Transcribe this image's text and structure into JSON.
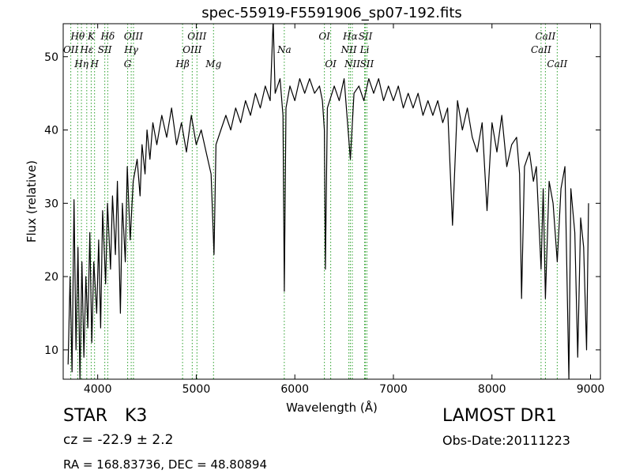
{
  "chart_data": {
    "type": "line",
    "title": "spec-55919-F5591906_sp07-192.fits",
    "xlabel": "Wavelength (Å)",
    "ylabel": "Flux (relative)",
    "xlim": [
      3650,
      9100
    ],
    "ylim": [
      6,
      54.5
    ],
    "xticks": [
      4000,
      5000,
      6000,
      7000,
      8000,
      9000
    ],
    "yticks": [
      10,
      20,
      30,
      40,
      50
    ],
    "grid": false,
    "series": [
      {
        "color": "#000000",
        "points": [
          [
            3700,
            8
          ],
          [
            3720,
            20
          ],
          [
            3740,
            7
          ],
          [
            3760,
            30.5
          ],
          [
            3780,
            10
          ],
          [
            3800,
            24
          ],
          [
            3820,
            6
          ],
          [
            3840,
            22
          ],
          [
            3860,
            9
          ],
          [
            3880,
            20
          ],
          [
            3900,
            13
          ],
          [
            3920,
            26
          ],
          [
            3940,
            11
          ],
          [
            3960,
            22
          ],
          [
            3990,
            15
          ],
          [
            4010,
            25
          ],
          [
            4030,
            13
          ],
          [
            4050,
            29
          ],
          [
            4080,
            19
          ],
          [
            4100,
            30
          ],
          [
            4130,
            21
          ],
          [
            4150,
            31
          ],
          [
            4180,
            23
          ],
          [
            4200,
            33
          ],
          [
            4230,
            15
          ],
          [
            4250,
            30
          ],
          [
            4280,
            22
          ],
          [
            4300,
            35
          ],
          [
            4330,
            25
          ],
          [
            4360,
            33
          ],
          [
            4400,
            36
          ],
          [
            4430,
            31
          ],
          [
            4450,
            38
          ],
          [
            4480,
            34
          ],
          [
            4500,
            40
          ],
          [
            4530,
            36
          ],
          [
            4560,
            41
          ],
          [
            4600,
            38
          ],
          [
            4650,
            42
          ],
          [
            4700,
            39
          ],
          [
            4750,
            43
          ],
          [
            4800,
            38
          ],
          [
            4850,
            41
          ],
          [
            4900,
            37
          ],
          [
            4950,
            42
          ],
          [
            5000,
            38
          ],
          [
            5050,
            40
          ],
          [
            5100,
            37
          ],
          [
            5150,
            34
          ],
          [
            5180,
            23
          ],
          [
            5200,
            38
          ],
          [
            5250,
            40
          ],
          [
            5300,
            42
          ],
          [
            5350,
            40
          ],
          [
            5400,
            43
          ],
          [
            5450,
            41
          ],
          [
            5500,
            44
          ],
          [
            5550,
            42
          ],
          [
            5600,
            45
          ],
          [
            5650,
            43
          ],
          [
            5700,
            46
          ],
          [
            5750,
            44
          ],
          [
            5780,
            55
          ],
          [
            5800,
            45
          ],
          [
            5850,
            47
          ],
          [
            5880,
            42
          ],
          [
            5893,
            18
          ],
          [
            5910,
            43
          ],
          [
            5950,
            46
          ],
          [
            6000,
            44
          ],
          [
            6050,
            47
          ],
          [
            6100,
            45
          ],
          [
            6150,
            47
          ],
          [
            6200,
            45
          ],
          [
            6250,
            46
          ],
          [
            6280,
            44
          ],
          [
            6300,
            40
          ],
          [
            6310,
            21
          ],
          [
            6330,
            43
          ],
          [
            6400,
            46
          ],
          [
            6450,
            44
          ],
          [
            6500,
            47
          ],
          [
            6563,
            36
          ],
          [
            6600,
            45
          ],
          [
            6650,
            46
          ],
          [
            6700,
            44
          ],
          [
            6750,
            47
          ],
          [
            6800,
            45
          ],
          [
            6850,
            47
          ],
          [
            6900,
            44
          ],
          [
            6950,
            46
          ],
          [
            7000,
            44
          ],
          [
            7050,
            46
          ],
          [
            7100,
            43
          ],
          [
            7150,
            45
          ],
          [
            7200,
            43
          ],
          [
            7250,
            45
          ],
          [
            7300,
            42
          ],
          [
            7350,
            44
          ],
          [
            7400,
            42
          ],
          [
            7450,
            44
          ],
          [
            7500,
            41
          ],
          [
            7550,
            43
          ],
          [
            7600,
            27
          ],
          [
            7650,
            44
          ],
          [
            7700,
            40
          ],
          [
            7750,
            43
          ],
          [
            7800,
            39
          ],
          [
            7850,
            37
          ],
          [
            7900,
            41
          ],
          [
            7950,
            29
          ],
          [
            8000,
            41
          ],
          [
            8050,
            37
          ],
          [
            8100,
            42
          ],
          [
            8150,
            35
          ],
          [
            8200,
            38
          ],
          [
            8250,
            39
          ],
          [
            8280,
            34
          ],
          [
            8300,
            17
          ],
          [
            8330,
            35
          ],
          [
            8380,
            37
          ],
          [
            8420,
            33
          ],
          [
            8450,
            35
          ],
          [
            8498,
            21
          ],
          [
            8520,
            32
          ],
          [
            8542,
            17
          ],
          [
            8580,
            33
          ],
          [
            8620,
            30
          ],
          [
            8662,
            22
          ],
          [
            8700,
            32
          ],
          [
            8740,
            35
          ],
          [
            8780,
            6
          ],
          [
            8800,
            32
          ],
          [
            8840,
            26
          ],
          [
            8870,
            9
          ],
          [
            8900,
            28
          ],
          [
            8930,
            24
          ],
          [
            8960,
            10
          ],
          [
            8980,
            30
          ]
        ]
      }
    ],
    "line_markers": [
      {
        "label": "Hθ",
        "x": 3797,
        "row": 1,
        "color": "#2ca02c"
      },
      {
        "label": "K",
        "x": 3934,
        "row": 1,
        "color": "#2ca02c"
      },
      {
        "label": "Hδ",
        "x": 4102,
        "row": 1,
        "color": "#2ca02c"
      },
      {
        "label": "OIII",
        "x": 4363,
        "row": 1,
        "color": "#2ca02c"
      },
      {
        "label": "OIII",
        "x": 5007,
        "row": 1,
        "color": "#2ca02c"
      },
      {
        "label": "OI",
        "x": 6300,
        "row": 1,
        "color": "#2ca02c"
      },
      {
        "label": "Hα",
        "x": 6563,
        "row": 1,
        "color": "#2ca02c"
      },
      {
        "label": "SII",
        "x": 6716,
        "row": 1,
        "color": "#2ca02c"
      },
      {
        "label": "CaII",
        "x": 8542,
        "row": 1,
        "color": "#2ca02c"
      },
      {
        "label": "OII",
        "x": 3727,
        "row": 2,
        "color": "#2ca02c"
      },
      {
        "label": "Hε",
        "x": 3889,
        "row": 2,
        "color": "#2ca02c"
      },
      {
        "label": "SII",
        "x": 4072,
        "row": 2,
        "color": "#2ca02c"
      },
      {
        "label": "Hγ",
        "x": 4340,
        "row": 2,
        "color": "#2ca02c"
      },
      {
        "label": "NII",
        "x": 6548,
        "row": 2,
        "color": "#2ca02c"
      },
      {
        "label": "Li",
        "x": 6708,
        "row": 2,
        "color": "#2ca02c"
      },
      {
        "label": "CaII",
        "x": 8498,
        "row": 2,
        "color": "#2ca02c"
      },
      {
        "label": "Hη",
        "x": 3835,
        "row": 3,
        "color": "#2ca02c"
      },
      {
        "label": "H",
        "x": 3968,
        "row": 3,
        "color": "#2ca02c"
      },
      {
        "label": "G",
        "x": 4304,
        "row": 3,
        "color": "#2ca02c"
      },
      {
        "label": "OIII",
        "x": 4959,
        "row": 2,
        "color": "#2ca02c"
      },
      {
        "label": "Hβ",
        "x": 4861,
        "row": 3,
        "color": "#2ca02c"
      },
      {
        "label": "Mg",
        "x": 5175,
        "row": 3,
        "color": "#2ca02c"
      },
      {
        "label": "Na",
        "x": 5893,
        "row": 2,
        "color": "#2ca02c"
      },
      {
        "label": "OI",
        "x": 6364,
        "row": 3,
        "color": "#2ca02c"
      },
      {
        "label": "NII",
        "x": 6583,
        "row": 3,
        "color": "#2ca02c"
      },
      {
        "label": "SII",
        "x": 6731,
        "row": 3,
        "color": "#2ca02c"
      },
      {
        "label": "CaII",
        "x": 8662,
        "row": 3,
        "color": "#2ca02c"
      }
    ]
  },
  "footer": {
    "object_class": "STAR",
    "subclass": "K3",
    "survey": "LAMOST DR1",
    "redshift": "cz = -22.9 ± 2.2",
    "obs_date": "Obs-Date:20111223",
    "coordinates": "RA = 168.83736, DEC = 48.80894"
  }
}
